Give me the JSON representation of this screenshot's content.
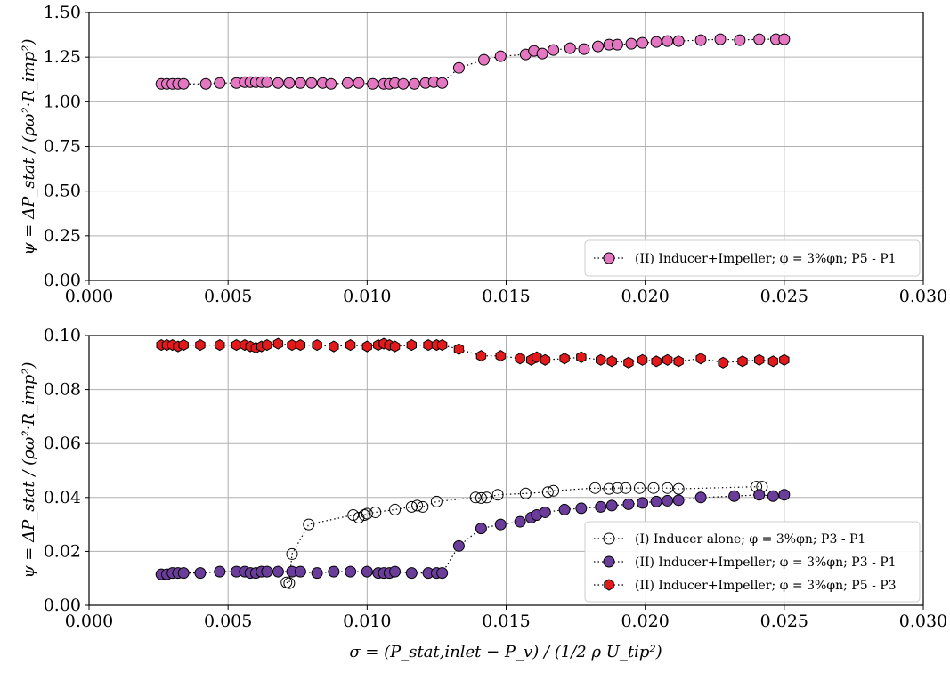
{
  "figure": {
    "xlabel": "σ = (P_stat,inlet − P_v) / (1/2 ρ U_tip²)"
  },
  "chart_data": [
    {
      "type": "line",
      "ylabel": "ψ = ΔP_stat / (ρω²·R_imp²)",
      "xlim": [
        0.0,
        0.03
      ],
      "ylim": [
        0.0,
        1.5
      ],
      "xticks": [
        "0.000",
        "0.005",
        "0.010",
        "0.015",
        "0.020",
        "0.025",
        "0.030"
      ],
      "yticks": [
        "0.00",
        "0.25",
        "0.50",
        "0.75",
        "1.00",
        "1.25",
        "1.50"
      ],
      "grid": true,
      "legend_position": "lower-right",
      "series": [
        {
          "name": "(II) Inducer+Impeller; φ = 3%φn; P5 - P1",
          "color": "#e377c2",
          "marker": "circle",
          "filled": true,
          "x": [
            0.0026,
            0.0028,
            0.003,
            0.0032,
            0.0034,
            0.0042,
            0.0047,
            0.0053,
            0.0056,
            0.0058,
            0.006,
            0.0062,
            0.0064,
            0.0068,
            0.0072,
            0.0076,
            0.008,
            0.0084,
            0.0087,
            0.0093,
            0.0097,
            0.0102,
            0.0106,
            0.0108,
            0.011,
            0.0113,
            0.0117,
            0.0121,
            0.0124,
            0.0127,
            0.0133,
            0.0142,
            0.0148,
            0.0157,
            0.016,
            0.0163,
            0.0167,
            0.0173,
            0.0178,
            0.0183,
            0.0187,
            0.019,
            0.0195,
            0.0199,
            0.0204,
            0.0208,
            0.0212,
            0.022,
            0.0227,
            0.0234,
            0.0241,
            0.0247,
            0.025
          ],
          "y": [
            1.1,
            1.1,
            1.1,
            1.1,
            1.1,
            1.1,
            1.105,
            1.105,
            1.11,
            1.11,
            1.11,
            1.11,
            1.11,
            1.105,
            1.105,
            1.105,
            1.105,
            1.105,
            1.1,
            1.105,
            1.105,
            1.1,
            1.1,
            1.1,
            1.105,
            1.1,
            1.1,
            1.105,
            1.11,
            1.105,
            1.19,
            1.235,
            1.255,
            1.265,
            1.285,
            1.27,
            1.29,
            1.3,
            1.295,
            1.31,
            1.32,
            1.32,
            1.325,
            1.33,
            1.335,
            1.34,
            1.34,
            1.345,
            1.35,
            1.345,
            1.35,
            1.35,
            1.35
          ]
        }
      ]
    },
    {
      "type": "line",
      "ylabel": "ψ = ΔP_stat / (ρω²·R_imp²)",
      "xlim": [
        0.0,
        0.03
      ],
      "ylim": [
        0.0,
        0.1
      ],
      "xticks": [
        "0.000",
        "0.005",
        "0.010",
        "0.015",
        "0.020",
        "0.025",
        "0.030"
      ],
      "yticks": [
        "0.00",
        "0.02",
        "0.04",
        "0.06",
        "0.08",
        "0.10"
      ],
      "grid": true,
      "legend_position": "lower-right",
      "series": [
        {
          "name": "(I) Inducer alone; φ = 3%φn; P3 - P1",
          "color": "#000000",
          "marker": "circle",
          "filled": false,
          "x": [
            0.0071,
            0.0072,
            0.0073,
            0.0079,
            0.0095,
            0.0097,
            0.0099,
            0.01,
            0.0103,
            0.011,
            0.0116,
            0.0118,
            0.012,
            0.0125,
            0.0139,
            0.0141,
            0.0143,
            0.0147,
            0.0157,
            0.0165,
            0.0167,
            0.0182,
            0.0187,
            0.019,
            0.0193,
            0.0198,
            0.0203,
            0.0208,
            0.0212,
            0.024,
            0.0242
          ],
          "y": [
            0.0085,
            0.0082,
            0.019,
            0.03,
            0.0335,
            0.0325,
            0.0335,
            0.034,
            0.0345,
            0.0355,
            0.0365,
            0.037,
            0.0365,
            0.0385,
            0.04,
            0.0398,
            0.04,
            0.041,
            0.0415,
            0.042,
            0.0425,
            0.0435,
            0.0432,
            0.0435,
            0.0435,
            0.0435,
            0.0435,
            0.0435,
            0.0432,
            0.044,
            0.044
          ]
        },
        {
          "name": "(II) Inducer+Impeller; φ = 3%φn; P3 - P1",
          "color": "#6a3d9a",
          "marker": "circle",
          "filled": true,
          "x": [
            0.0026,
            0.0028,
            0.003,
            0.0032,
            0.0034,
            0.004,
            0.0047,
            0.0053,
            0.0056,
            0.0058,
            0.006,
            0.0062,
            0.0064,
            0.0068,
            0.0073,
            0.0076,
            0.0082,
            0.0088,
            0.0094,
            0.01,
            0.0104,
            0.0106,
            0.0108,
            0.011,
            0.0116,
            0.0122,
            0.0125,
            0.0127,
            0.0133,
            0.0141,
            0.0148,
            0.0155,
            0.0159,
            0.0161,
            0.0164,
            0.0171,
            0.0177,
            0.0184,
            0.0188,
            0.0194,
            0.0199,
            0.0204,
            0.0208,
            0.0212,
            0.022,
            0.0232,
            0.0241,
            0.0246,
            0.025
          ],
          "y": [
            0.0115,
            0.0115,
            0.012,
            0.012,
            0.012,
            0.012,
            0.0125,
            0.0125,
            0.0125,
            0.012,
            0.012,
            0.0125,
            0.0125,
            0.0125,
            0.0125,
            0.0125,
            0.012,
            0.0125,
            0.0125,
            0.0125,
            0.012,
            0.012,
            0.012,
            0.0125,
            0.012,
            0.012,
            0.012,
            0.012,
            0.022,
            0.0285,
            0.03,
            0.031,
            0.0325,
            0.0335,
            0.0345,
            0.0355,
            0.036,
            0.0365,
            0.037,
            0.0375,
            0.038,
            0.0385,
            0.0388,
            0.039,
            0.04,
            0.0405,
            0.041,
            0.0405,
            0.041
          ]
        },
        {
          "name": "(II) Inducer+Impeller; φ = 3%φn; P5 - P3",
          "color": "#e31a1c",
          "marker": "hexagon",
          "filled": true,
          "x": [
            0.0026,
            0.0028,
            0.003,
            0.0032,
            0.0034,
            0.004,
            0.0047,
            0.0053,
            0.0056,
            0.0058,
            0.006,
            0.0062,
            0.0064,
            0.0068,
            0.0073,
            0.0076,
            0.0082,
            0.0088,
            0.0094,
            0.01,
            0.0104,
            0.0106,
            0.0108,
            0.011,
            0.0116,
            0.0122,
            0.0125,
            0.0127,
            0.0133,
            0.0141,
            0.0148,
            0.0155,
            0.0159,
            0.0161,
            0.0164,
            0.0171,
            0.0177,
            0.0184,
            0.0188,
            0.0194,
            0.0199,
            0.0204,
            0.0208,
            0.0212,
            0.022,
            0.0228,
            0.0235,
            0.0241,
            0.0246,
            0.025
          ],
          "y": [
            0.0965,
            0.0965,
            0.0965,
            0.096,
            0.0965,
            0.0965,
            0.0965,
            0.0965,
            0.0965,
            0.096,
            0.0955,
            0.096,
            0.0965,
            0.097,
            0.0965,
            0.0965,
            0.0965,
            0.096,
            0.0965,
            0.096,
            0.0965,
            0.097,
            0.0965,
            0.096,
            0.0965,
            0.0965,
            0.0965,
            0.0965,
            0.095,
            0.0925,
            0.0925,
            0.0915,
            0.091,
            0.092,
            0.091,
            0.0915,
            0.092,
            0.091,
            0.0905,
            0.09,
            0.091,
            0.0905,
            0.091,
            0.0905,
            0.0915,
            0.09,
            0.0905,
            0.091,
            0.0905,
            0.091
          ]
        }
      ]
    }
  ]
}
